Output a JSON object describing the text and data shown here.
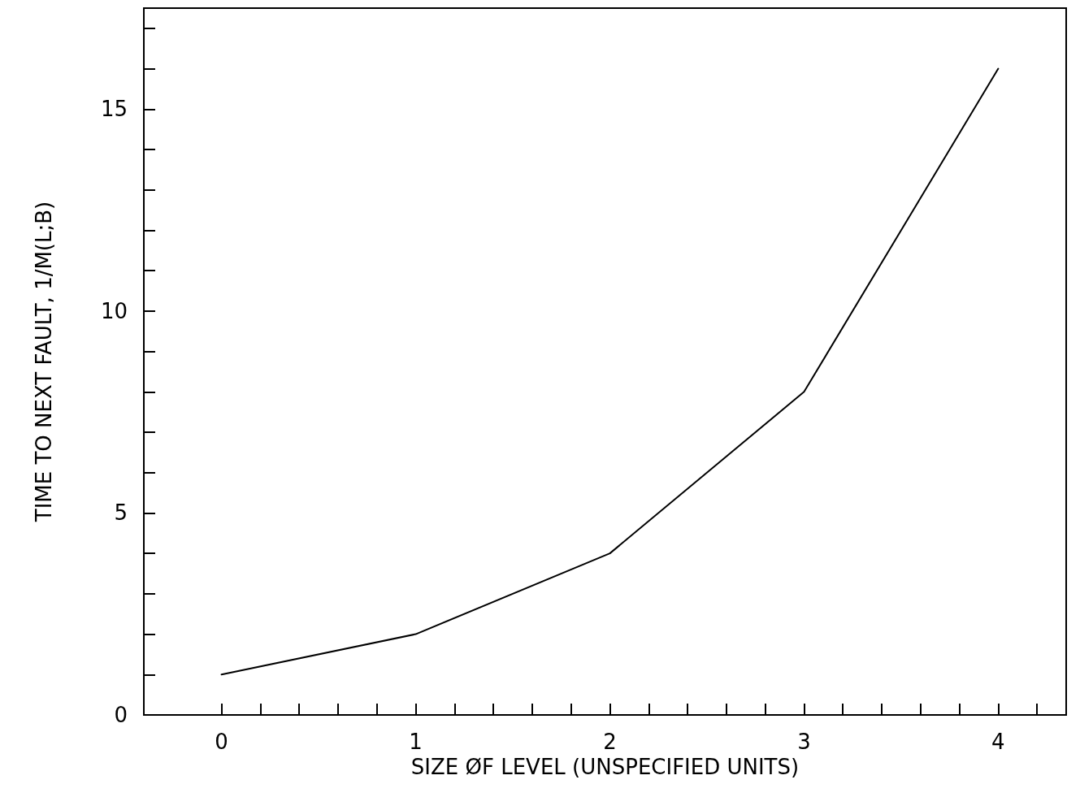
{
  "chart_data": {
    "type": "line",
    "xlabel": "SIZE ØF LEVEL (UNSPECIFIED UNITS)",
    "ylabel": "TIME TO NEXT FAULT, 1/M(L;B)",
    "x": [
      0,
      1,
      2,
      3,
      4
    ],
    "series": [
      {
        "color": "#000000",
        "values": [
          1,
          2,
          4,
          8,
          16
        ]
      }
    ],
    "xlim": [
      -0.4,
      4.35
    ],
    "xticks": [
      0,
      {
        "value": 0.2,
        "label": null
      },
      {
        "value": 0.4,
        "label": null
      },
      {
        "value": 0.6,
        "label": null
      },
      {
        "value": 0.8,
        "label": null
      },
      1,
      {
        "value": 1.2,
        "label": null
      },
      {
        "value": 1.4,
        "label": null
      },
      {
        "value": 1.6,
        "label": null
      },
      {
        "value": 1.8,
        "label": null
      },
      2,
      {
        "value": 2.2,
        "label": null
      },
      {
        "value": 2.4,
        "label": null
      },
      {
        "value": 2.6,
        "label": null
      },
      {
        "value": 2.8,
        "label": null
      },
      3,
      {
        "value": 3.2,
        "label": null
      },
      {
        "value": 3.4,
        "label": null
      },
      {
        "value": 3.6,
        "label": null
      },
      {
        "value": 3.8,
        "label": null
      },
      4,
      {
        "value": 4.2,
        "label": null
      }
    ],
    "ylim": [
      0,
      17.5
    ],
    "yticks": [
      0,
      {
        "value": 1,
        "label": null
      },
      {
        "value": 2,
        "label": null
      },
      {
        "value": 3,
        "label": null
      },
      {
        "value": 4,
        "label": null
      },
      5,
      {
        "value": 6,
        "label": null
      },
      {
        "value": 7,
        "label": null
      },
      {
        "value": 8,
        "label": null
      },
      {
        "value": 9,
        "label": null
      },
      10,
      {
        "value": 11,
        "label": null
      },
      {
        "value": 12,
        "label": null
      },
      {
        "value": 13,
        "label": null
      },
      {
        "value": 14,
        "label": null
      },
      15,
      {
        "value": 16,
        "label": null
      },
      {
        "value": 17,
        "label": null
      }
    ],
    "grid": false,
    "marker": "none",
    "line_style": "solid"
  }
}
